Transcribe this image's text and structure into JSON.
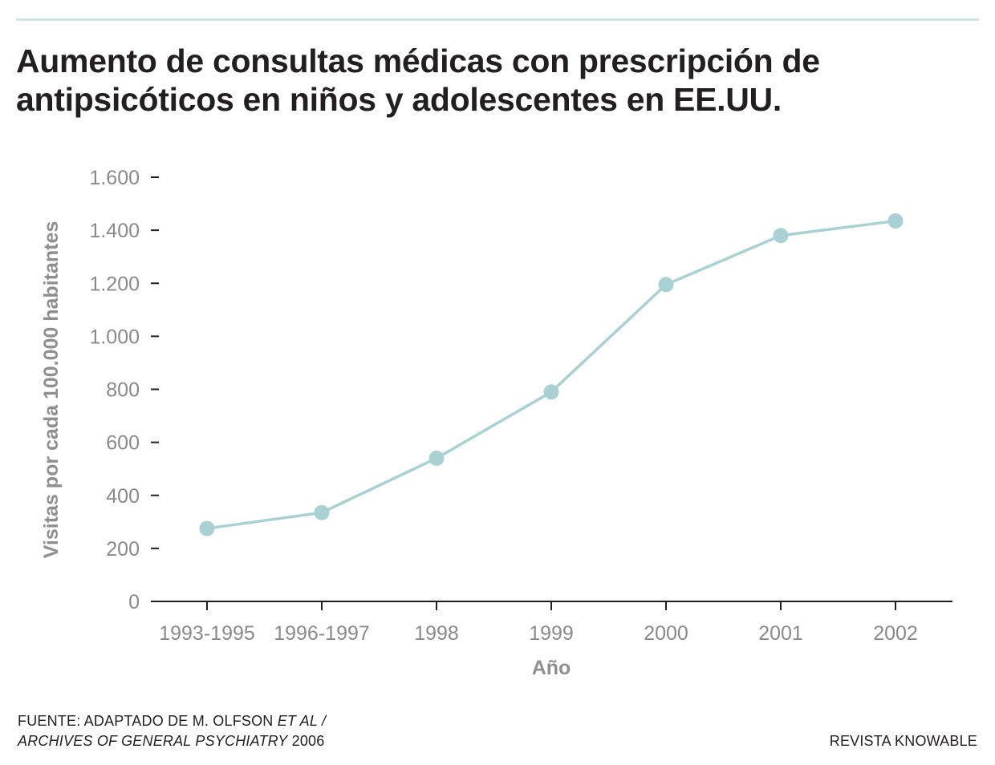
{
  "title_lines": [
    "Aumento de consultas médicas con prescripción de",
    "antipsicóticos en niños y adolescentes en EE.UU."
  ],
  "chart_data": {
    "type": "line",
    "title": "Aumento de consultas médicas con prescripción de antipsicóticos en niños y adolescentes en EE.UU.",
    "xlabel": "Año",
    "ylabel": "Visitas por cada 100.000 habitantes",
    "categories": [
      "1993-1995",
      "1996-1997",
      "1998",
      "1999",
      "2000",
      "2001",
      "2002"
    ],
    "series": [
      {
        "name": "Visitas por cada 100.000 habitantes",
        "values": [
          275,
          335,
          540,
          790,
          1195,
          1380,
          1435
        ]
      }
    ],
    "ylim": [
      0,
      1600
    ],
    "yticks": [
      0,
      200,
      400,
      600,
      800,
      1000,
      1200,
      1400,
      1600
    ],
    "ytick_labels": [
      "0",
      "200",
      "400",
      "600",
      "800",
      "1.000",
      "1.200",
      "1.400",
      "1.600"
    ],
    "grid": false,
    "line_color": "#a9d0d3",
    "axis_color": "#231f20"
  },
  "footer": {
    "source_prefix": "FUENTE: ADAPTADO DE M. OLFSON ",
    "source_italic_1": "ET AL /",
    "source_italic_2": "ARCHIVES OF GENERAL PSYCHIATRY",
    "source_year": " 2006",
    "brand": "REVISTA KNOWABLE"
  }
}
